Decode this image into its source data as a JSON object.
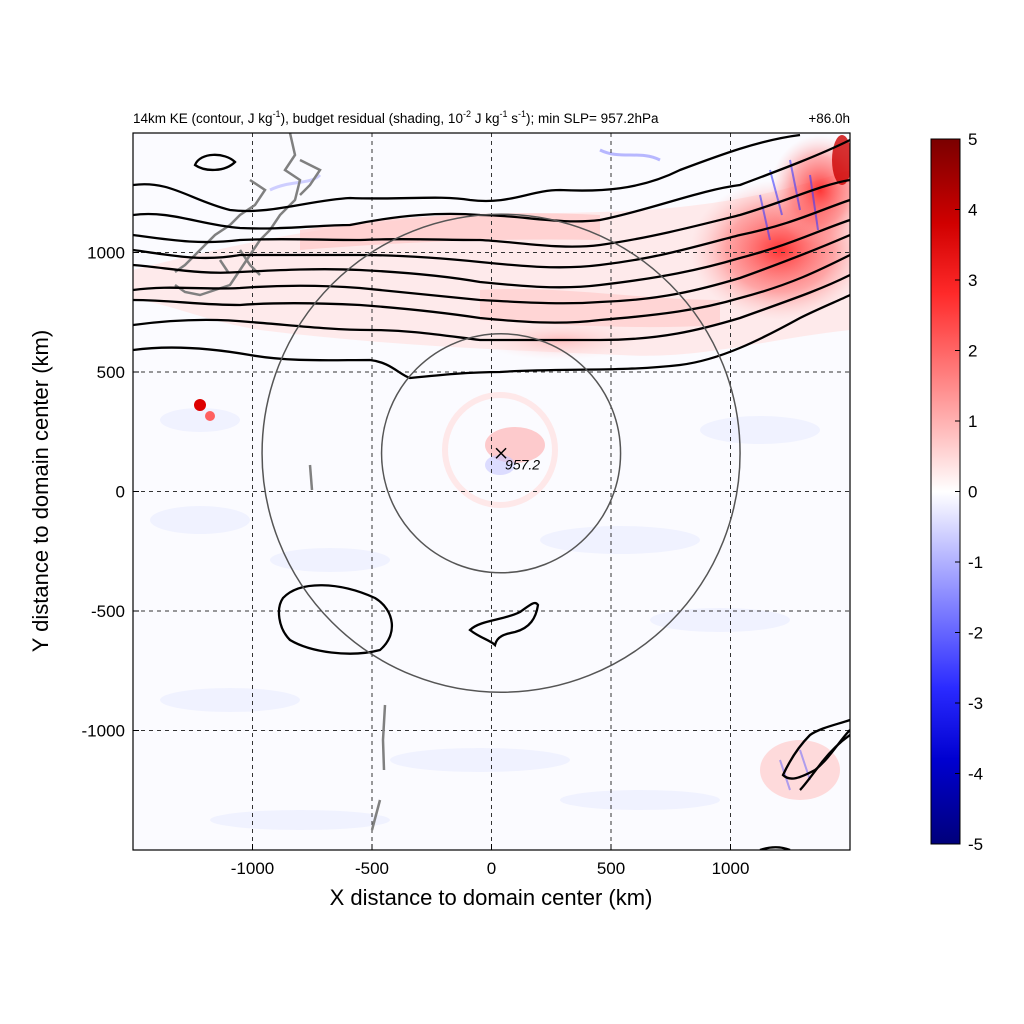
{
  "chart_data": {
    "type": "heatmap",
    "title_parts": {
      "p1": "14km KE (contour, J kg",
      "p1_sup": "-1",
      "p2": "), budget residual (shading, 10",
      "p2_sup": "-2",
      "p3": " J kg",
      "p3_sup": "-1",
      "p4": " s",
      "p4_sup": "-1",
      "p5": "); min SLP= 957.2hPa"
    },
    "time_label": "+86.0h",
    "xlabel": "X distance to domain center (km)",
    "ylabel": "Y distance to domain center (km)",
    "xlim": [
      -1500,
      1500
    ],
    "ylim": [
      -1500,
      1500
    ],
    "xticks": [
      "-1000",
      "-500",
      "0",
      "500",
      "1000"
    ],
    "yticks": [
      "1000",
      "500",
      "0",
      "-500",
      "-1000"
    ],
    "xtick_values": [
      -1000,
      -500,
      0,
      500,
      1000
    ],
    "ytick_values": [
      1000,
      500,
      0,
      -500,
      -1000
    ],
    "grid": true,
    "colorbar": {
      "ticks": [
        "5",
        "4",
        "3",
        "2",
        "1",
        "0",
        "-1",
        "-2",
        "-3",
        "-4",
        "-5"
      ],
      "tick_values": [
        5,
        4,
        3,
        2,
        1,
        0,
        -1,
        -2,
        -3,
        -4,
        -5
      ],
      "range": [
        -5,
        5
      ],
      "colormap": "blue-white-red",
      "colors": {
        "max": "#7a0000",
        "high": "#ff0000",
        "zero": "#ffffff",
        "low": "#0000ff",
        "min": "#00007a"
      }
    },
    "storm_center": {
      "x": 40,
      "y": 160,
      "label": "957.2"
    },
    "range_circles": [
      {
        "center_x": 40,
        "center_y": 160,
        "radius": 500
      },
      {
        "center_x": 40,
        "center_y": 160,
        "radius": 1000
      }
    ],
    "colors": {
      "contour": "#000000",
      "coastline": "#808080",
      "circles": "#555555"
    }
  }
}
